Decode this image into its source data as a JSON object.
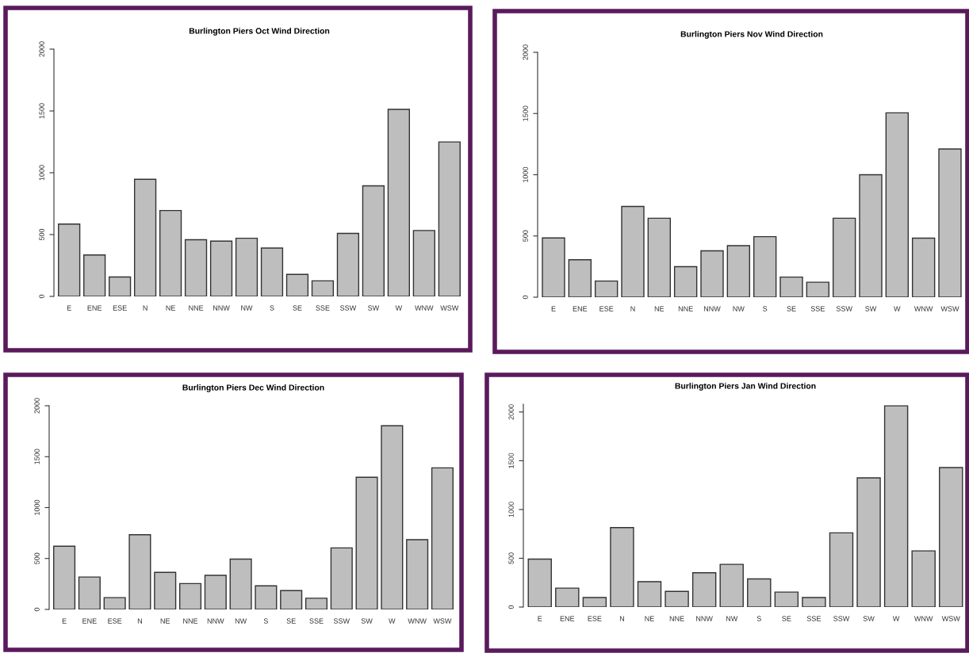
{
  "chart_data": [
    {
      "type": "bar",
      "title": "Burlington Piers Oct Wind Direction",
      "categories": [
        "E",
        "ENE",
        "ESE",
        "N",
        "NE",
        "NNE",
        "NNW",
        "NW",
        "S",
        "SE",
        "SSE",
        "SSW",
        "SW",
        "W",
        "WNW",
        "WSW"
      ],
      "values": [
        585,
        335,
        157,
        947,
        695,
        458,
        447,
        470,
        391,
        178,
        126,
        510,
        894,
        1513,
        533,
        1249
      ],
      "color": "#bebebe",
      "ylim": [
        0,
        2000
      ],
      "yticks": [
        0,
        500,
        1000,
        1500,
        2000
      ]
    },
    {
      "type": "bar",
      "title": "Burlington Piers Nov Wind Direction",
      "categories": [
        "E",
        "ENE",
        "ESE",
        "N",
        "NE",
        "NNE",
        "NNW",
        "NW",
        "S",
        "SE",
        "SSE",
        "SSW",
        "SW",
        "W",
        "WNW",
        "WSW"
      ],
      "values": [
        484,
        306,
        132,
        741,
        645,
        249,
        379,
        421,
        494,
        164,
        122,
        645,
        1000,
        1506,
        482,
        1210
      ],
      "color": "#bebebe",
      "ylim": [
        0,
        2000
      ],
      "yticks": [
        0,
        500,
        1000,
        1500,
        2000
      ]
    },
    {
      "type": "bar",
      "title": "Burlington Piers Dec Wind Direction",
      "categories": [
        "E",
        "ENE",
        "ESE",
        "N",
        "NE",
        "NNE",
        "NNW",
        "NW",
        "S",
        "SE",
        "SSE",
        "SSW",
        "SW",
        "W",
        "WNW",
        "WSW"
      ],
      "values": [
        621,
        318,
        116,
        734,
        364,
        254,
        335,
        494,
        231,
        185,
        110,
        604,
        1298,
        1803,
        685,
        1390
      ],
      "color": "#bebebe",
      "ylim": [
        0,
        2000
      ],
      "yticks": [
        0,
        500,
        1000,
        1500,
        2000
      ]
    },
    {
      "type": "bar",
      "title": "Burlington Piers Jan Wind Direction",
      "categories": [
        "E",
        "ENE",
        "ESE",
        "N",
        "NE",
        "NNE",
        "NNW",
        "NW",
        "S",
        "SE",
        "SSE",
        "SSW",
        "SW",
        "W",
        "WNW",
        "WSW"
      ],
      "values": [
        491,
        194,
        97,
        814,
        260,
        160,
        351,
        438,
        288,
        153,
        97,
        761,
        1324,
        2063,
        576,
        1430
      ],
      "color": "#bebebe",
      "ylim": [
        0,
        2080
      ],
      "yticks": [
        0,
        500,
        1000,
        1500,
        2000
      ]
    }
  ]
}
